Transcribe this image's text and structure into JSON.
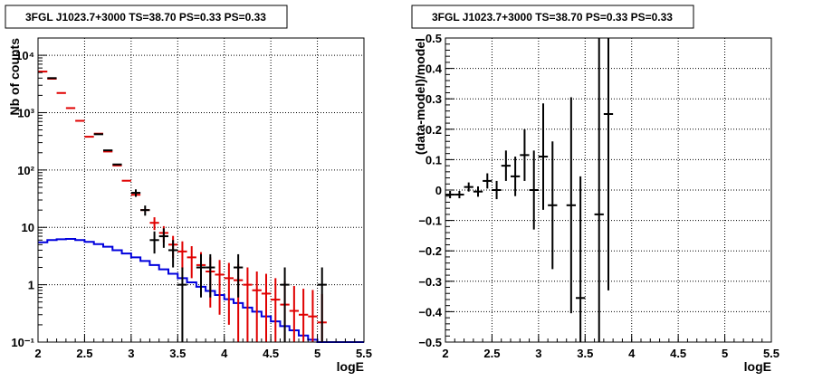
{
  "colors": {
    "data": "#000000",
    "model": "#e00000",
    "background_model": "#0000dd"
  },
  "chart_data": [
    {
      "type": "line",
      "title": "3FGL J1023.7+3000 TS=38.70 PS=0.33 PS=0.33",
      "xlabel": "logE",
      "ylabel": "Nb of counts",
      "xlim": [
        2,
        5.5
      ],
      "ylim": [
        0.1,
        20000
      ],
      "yscale": "log",
      "grid": true,
      "x_ticks": [
        "2",
        "2.5",
        "3",
        "3.5",
        "4",
        "4.5",
        "5",
        "5.5"
      ],
      "y_ticks": [
        "10⁻¹",
        "1",
        "10",
        "10²",
        "10³",
        "10⁴"
      ],
      "series": [
        {
          "kind": "data",
          "x": [
            2.05,
            2.15,
            2.25,
            2.35,
            2.45,
            2.55,
            2.65,
            2.75,
            2.85,
            2.95,
            3.05,
            3.15,
            3.25,
            3.35,
            3.45,
            3.55,
            3.65,
            3.75,
            3.85,
            3.95,
            4.05,
            4.15,
            4.25,
            4.35,
            4.45,
            4.55,
            4.65,
            4.75,
            4.85,
            4.95,
            5.05
          ],
          "y": [
            null,
            4000,
            null,
            null,
            null,
            null,
            420,
            220,
            125,
            null,
            40,
            20,
            6,
            7,
            4,
            1,
            null,
            2,
            2,
            null,
            null,
            2,
            null,
            null,
            null,
            null,
            1,
            null,
            null,
            null,
            1
          ],
          "yerr": [
            null,
            null,
            null,
            null,
            null,
            null,
            null,
            null,
            null,
            null,
            6,
            4,
            2.5,
            2.6,
            2,
            1,
            null,
            1.4,
            1.4,
            null,
            null,
            1.4,
            null,
            null,
            null,
            null,
            1,
            null,
            null,
            null,
            1
          ]
        },
        {
          "kind": "model",
          "x": [
            2.05,
            2.15,
            2.25,
            2.35,
            2.45,
            2.55,
            2.65,
            2.75,
            2.85,
            2.95,
            3.05,
            3.15,
            3.25,
            3.35,
            3.45,
            3.55,
            3.65,
            3.75,
            3.85,
            3.95,
            4.05,
            4.15,
            4.25,
            4.35,
            4.45,
            4.55,
            4.65,
            4.75,
            4.85,
            4.95,
            5.05
          ],
          "y": [
            5200,
            3900,
            2200,
            1200,
            720,
            380,
            430,
            210,
            120,
            65,
            37,
            20,
            12,
            8,
            5,
            3.8,
            3,
            2.2,
            1.7,
            1.5,
            1.3,
            1.2,
            1,
            0.8,
            0.7,
            0.55,
            0.45,
            0.35,
            0.3,
            0.28,
            0.22
          ],
          "yerr": [
            null,
            null,
            null,
            null,
            null,
            null,
            null,
            null,
            null,
            null,
            null,
            null,
            3,
            2.5,
            2.1,
            1.9,
            1.7,
            1.5,
            1.3,
            1.2,
            1.1,
            1.1,
            1,
            0.9,
            0.85,
            0.75,
            0.7,
            0.6,
            0.55,
            0.53,
            0.47
          ]
        },
        {
          "kind": "background_model",
          "x": [
            2.0,
            2.1,
            2.2,
            2.3,
            2.4,
            2.5,
            2.6,
            2.7,
            2.8,
            2.9,
            3.0,
            3.1,
            3.2,
            3.3,
            3.4,
            3.5,
            3.6,
            3.7,
            3.8,
            3.9,
            4.0,
            4.1,
            4.2,
            4.3,
            4.4,
            4.5,
            4.6,
            4.7,
            4.8,
            4.9,
            5.0,
            5.1,
            5.2,
            5.3,
            5.4,
            5.5
          ],
          "y": [
            5.5,
            6,
            6.2,
            6.3,
            6,
            5.6,
            5.1,
            4.6,
            4,
            3.5,
            3,
            2.6,
            2.2,
            1.85,
            1.55,
            1.3,
            1.1,
            0.92,
            0.78,
            0.66,
            0.56,
            0.48,
            0.4,
            0.34,
            0.28,
            0.23,
            0.19,
            0.16,
            0.13,
            0.11,
            0.1,
            0.1,
            0.1,
            0.1,
            0.1,
            0.1
          ]
        }
      ]
    },
    {
      "type": "scatter",
      "title": "3FGL J1023.7+3000 TS=38.70 PS=0.33 PS=0.33",
      "xlabel": "logE",
      "ylabel": "(data-model)/model",
      "xlim": [
        2,
        5.5
      ],
      "ylim": [
        -0.5,
        0.5
      ],
      "grid": true,
      "x_ticks": [
        "2",
        "2.5",
        "3",
        "3.5",
        "4",
        "4.5",
        "5",
        "5.5"
      ],
      "y_ticks": [
        "−0.5",
        "−0.4",
        "−0.3",
        "−0.2",
        "−0.1",
        "0",
        "0.1",
        "0.2",
        "0.3",
        "0.4",
        "0.5"
      ],
      "series": [
        {
          "kind": "residuals",
          "x": [
            2.05,
            2.15,
            2.25,
            2.35,
            2.45,
            2.55,
            2.65,
            2.75,
            2.85,
            2.95,
            3.05,
            3.15,
            3.35,
            3.45,
            3.65,
            3.75
          ],
          "y": [
            -0.015,
            -0.015,
            0.01,
            -0.005,
            0.03,
            0.0,
            0.08,
            0.045,
            0.115,
            0.0,
            0.11,
            -0.05,
            -0.05,
            -0.355,
            -0.08,
            0.25
          ],
          "yerr": [
            0.012,
            0.012,
            0.015,
            0.017,
            0.025,
            0.03,
            0.05,
            0.065,
            0.085,
            0.13,
            0.175,
            0.21,
            0.355,
            0.4,
            0.58,
            0.58
          ]
        }
      ]
    }
  ]
}
